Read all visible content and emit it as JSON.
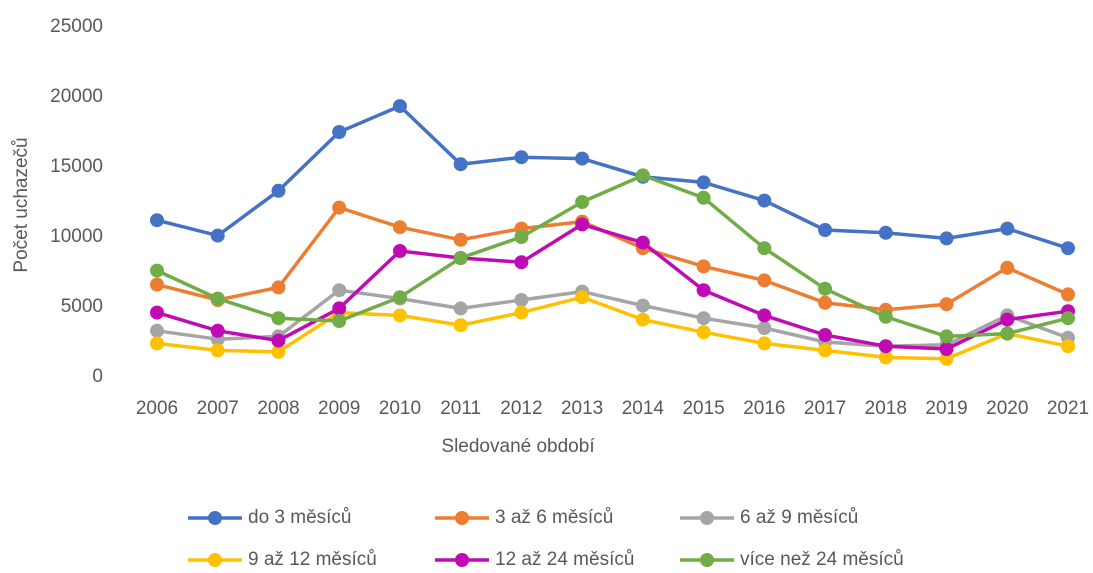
{
  "chart_data": {
    "type": "line",
    "x_label": "Sledované období",
    "y_label": "Počet uchazečů",
    "categories": [
      "2006",
      "2007",
      "2008",
      "2009",
      "2010",
      "2011",
      "2012",
      "2013",
      "2014",
      "2015",
      "2016",
      "2017",
      "2018",
      "2019",
      "2020",
      "2021"
    ],
    "ylim": [
      0,
      25000
    ],
    "yticks": [
      0,
      5000,
      10000,
      15000,
      20000,
      25000
    ],
    "grid": false,
    "legend": "bottom",
    "series": [
      {
        "name": "do 3 měsíců",
        "color": "#4472c4",
        "values": [
          11200,
          10100,
          13300,
          17500,
          19350,
          15200,
          15700,
          15600,
          14300,
          13900,
          12600,
          10500,
          10300,
          9900,
          10600,
          9200
        ]
      },
      {
        "name": "3 až 6 měsíců",
        "color": "#ed7d31",
        "values": [
          6600,
          5500,
          6400,
          12100,
          10700,
          9800,
          10600,
          11100,
          9200,
          7900,
          6900,
          5300,
          4800,
          5200,
          7800,
          5900
        ]
      },
      {
        "name": "6 až 9 měsíců",
        "color": "#a5a5a5",
        "values": [
          3300,
          2700,
          2900,
          6200,
          5600,
          4900,
          5500,
          6100,
          5100,
          4200,
          3500,
          2500,
          2200,
          2300,
          4400,
          2800
        ]
      },
      {
        "name": "9 až 12 měsíců",
        "color": "#ffc000",
        "values": [
          2400,
          1900,
          1800,
          4600,
          4400,
          3700,
          4600,
          5700,
          4100,
          3200,
          2400,
          1900,
          1400,
          1300,
          3100,
          2200
        ]
      },
      {
        "name": "12 až 24 měsíců",
        "color": "#c00bb5",
        "values": [
          4600,
          3300,
          2600,
          4900,
          9000,
          8500,
          8200,
          10900,
          9600,
          6200,
          4400,
          3000,
          2200,
          2000,
          4100,
          4700
        ]
      },
      {
        "name": "více než 24 měsíců",
        "color": "#70ad47",
        "values": [
          7600,
          5600,
          4200,
          4000,
          5700,
          8500,
          10000,
          12500,
          14400,
          12800,
          9200,
          6300,
          4300,
          2900,
          3100,
          4200
        ]
      }
    ]
  }
}
